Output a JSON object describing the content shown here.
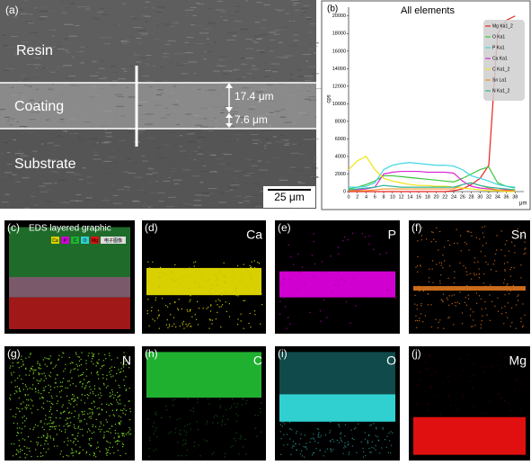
{
  "panel_a": {
    "label": "(a)",
    "regions": [
      "Resin",
      "Coating",
      "Substrate"
    ],
    "thickness": [
      "17.4 μm",
      "7.6 μm"
    ],
    "scale_bar": "25 μm"
  },
  "chart_data": {
    "type": "line",
    "label": "(b)",
    "title": "All elements",
    "y_label": "cps",
    "x_label": "μm",
    "x": [
      0,
      2,
      4,
      6,
      8,
      10,
      12,
      14,
      16,
      18,
      20,
      22,
      24,
      26,
      28,
      30,
      32,
      34,
      36,
      38
    ],
    "xlim": [
      0,
      40
    ],
    "xticks": [
      0,
      2,
      4,
      6,
      8,
      10,
      12,
      14,
      16,
      18,
      20,
      22,
      24,
      26,
      28,
      30,
      32,
      34,
      36,
      38
    ],
    "ylim": [
      0,
      21000
    ],
    "yticks": [
      0,
      2000,
      4000,
      6000,
      8000,
      10000,
      12000,
      14000,
      16000,
      18000,
      20000
    ],
    "legend": "top-right",
    "series": [
      {
        "name": "Mg Ka1_2",
        "color": "#e8231e",
        "values": [
          0,
          0,
          0,
          0,
          0,
          0,
          0,
          0,
          0,
          0,
          0,
          0,
          100,
          300,
          800,
          1500,
          3000,
          18000,
          19500,
          20000
        ]
      },
      {
        "name": "O Ka1",
        "color": "#3cc43c",
        "values": [
          300,
          500,
          800,
          1200,
          1800,
          1800,
          1700,
          1600,
          1500,
          1400,
          1300,
          1200,
          1100,
          1500,
          2000,
          2500,
          2800,
          1000,
          600,
          400
        ]
      },
      {
        "name": "P Ka1",
        "color": "#3fd6e0",
        "values": [
          500,
          500,
          600,
          1000,
          2500,
          3000,
          3200,
          3300,
          3200,
          3100,
          3000,
          3000,
          2900,
          2500,
          1800,
          1500,
          1200,
          800,
          600,
          500
        ]
      },
      {
        "name": "Ca Ka1",
        "color": "#d829d8",
        "values": [
          200,
          200,
          300,
          500,
          2000,
          2200,
          2300,
          2300,
          2300,
          2200,
          2200,
          2200,
          2100,
          1200,
          600,
          400,
          300,
          200,
          200,
          200
        ]
      },
      {
        "name": "C Ka1_2",
        "color": "#f2e414",
        "values": [
          2500,
          3500,
          4000,
          2500,
          1500,
          1200,
          1000,
          800,
          700,
          700,
          600,
          600,
          500,
          400,
          300,
          200,
          100,
          100,
          0,
          0
        ]
      },
      {
        "name": "Sn La1",
        "color": "#f0902a",
        "values": [
          100,
          100,
          100,
          200,
          300,
          300,
          300,
          300,
          300,
          300,
          300,
          300,
          300,
          800,
          1000,
          700,
          400,
          200,
          100,
          100
        ]
      },
      {
        "name": "N Ka1_2",
        "color": "#2fb59a",
        "values": [
          200,
          300,
          400,
          500,
          700,
          600,
          500,
          500,
          500,
          500,
          500,
          500,
          500,
          800,
          1000,
          700,
          500,
          400,
          300,
          200
        ]
      }
    ]
  },
  "maps": [
    {
      "label": "(c)",
      "title": "EDS layered graphic",
      "legend": [
        "Ca",
        "P",
        "C",
        "O",
        "Mg",
        "电子图像"
      ]
    },
    {
      "label": "(d)",
      "element": "Ca"
    },
    {
      "label": "(e)",
      "element": "P"
    },
    {
      "label": "(f)",
      "element": "Sn"
    },
    {
      "label": "(g)",
      "element": "N"
    },
    {
      "label": "(h)",
      "element": "C"
    },
    {
      "label": "(i)",
      "element": "O"
    },
    {
      "label": "(j)",
      "element": "Mg"
    }
  ]
}
